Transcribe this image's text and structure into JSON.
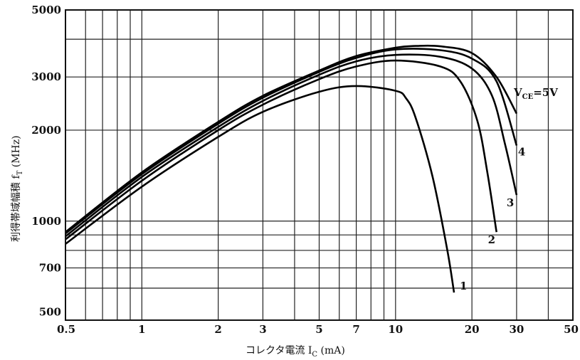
{
  "chart_data": {
    "type": "line",
    "title": "",
    "xlabel": "コレクタ電流  I",
    "xlabel_sub": "C",
    "xlabel_unit": " (mA)",
    "ylabel": "利得帯域幅積  f",
    "ylabel_sub": "T",
    "ylabel_unit": " (MHz)",
    "xscale": "log",
    "yscale": "log",
    "xlim": [
      0.5,
      50
    ],
    "ylim": [
      470,
      5000
    ],
    "grid": true,
    "x_ticks": [
      {
        "v": 0.5,
        "label": "0.5"
      },
      {
        "v": 1,
        "label": "1"
      },
      {
        "v": 2,
        "label": "2"
      },
      {
        "v": 3,
        "label": "3"
      },
      {
        "v": 5,
        "label": "5"
      },
      {
        "v": 7,
        "label": "7"
      },
      {
        "v": 10,
        "label": "10"
      },
      {
        "v": 20,
        "label": "20"
      },
      {
        "v": 30,
        "label": "30"
      },
      {
        "v": 50,
        "label": "50"
      }
    ],
    "x_grid": [
      0.6,
      0.7,
      0.8,
      0.9,
      1,
      2,
      3,
      4,
      5,
      6,
      7,
      8,
      9,
      10,
      20,
      30,
      40
    ],
    "y_ticks": [
      {
        "v": 500,
        "label": "500"
      },
      {
        "v": 700,
        "label": "700"
      },
      {
        "v": 1000,
        "label": "1000"
      },
      {
        "v": 2000,
        "label": "2000"
      },
      {
        "v": 3000,
        "label": "3000"
      },
      {
        "v": 5000,
        "label": "5000"
      }
    ],
    "y_grid": [
      600,
      700,
      800,
      900,
      1000,
      2000,
      3000,
      4000
    ],
    "annotation": {
      "main": "V",
      "sub": "CE",
      "rest": "=5V"
    },
    "series": [
      {
        "name": "1",
        "points": [
          [
            0.5,
            840
          ],
          [
            1,
            1300
          ],
          [
            2,
            1900
          ],
          [
            3,
            2300
          ],
          [
            5,
            2680
          ],
          [
            7,
            2800
          ],
          [
            10,
            2700
          ],
          [
            11,
            2550
          ],
          [
            12,
            2200
          ],
          [
            14,
            1400
          ],
          [
            16,
            800
          ],
          [
            17,
            580
          ]
        ]
      },
      {
        "name": "2",
        "points": [
          [
            0.5,
            870
          ],
          [
            1,
            1360
          ],
          [
            2,
            2000
          ],
          [
            3,
            2430
          ],
          [
            5,
            2950
          ],
          [
            7,
            3250
          ],
          [
            10,
            3400
          ],
          [
            15,
            3250
          ],
          [
            18,
            2900
          ],
          [
            21,
            2150
          ],
          [
            23,
            1450
          ],
          [
            25,
            920
          ]
        ]
      },
      {
        "name": "3",
        "points": [
          [
            0.5,
            890
          ],
          [
            1,
            1400
          ],
          [
            2,
            2050
          ],
          [
            3,
            2500
          ],
          [
            5,
            3050
          ],
          [
            7,
            3380
          ],
          [
            10,
            3550
          ],
          [
            15,
            3500
          ],
          [
            20,
            3200
          ],
          [
            24,
            2600
          ],
          [
            27,
            1800
          ],
          [
            30,
            1220
          ]
        ]
      },
      {
        "name": "4",
        "points": [
          [
            0.5,
            910
          ],
          [
            1,
            1430
          ],
          [
            2,
            2100
          ],
          [
            3,
            2560
          ],
          [
            5,
            3120
          ],
          [
            7,
            3470
          ],
          [
            10,
            3700
          ],
          [
            15,
            3680
          ],
          [
            20,
            3450
          ],
          [
            25,
            2900
          ],
          [
            30,
            1780
          ]
        ]
      },
      {
        "name": "",
        "points": [
          [
            0.5,
            920
          ],
          [
            1,
            1450
          ],
          [
            2,
            2130
          ],
          [
            3,
            2600
          ],
          [
            5,
            3150
          ],
          [
            7,
            3520
          ],
          [
            10,
            3750
          ],
          [
            12,
            3800
          ],
          [
            15,
            3790
          ],
          [
            20,
            3600
          ],
          [
            25,
            3000
          ],
          [
            30,
            2270
          ]
        ]
      }
    ]
  }
}
